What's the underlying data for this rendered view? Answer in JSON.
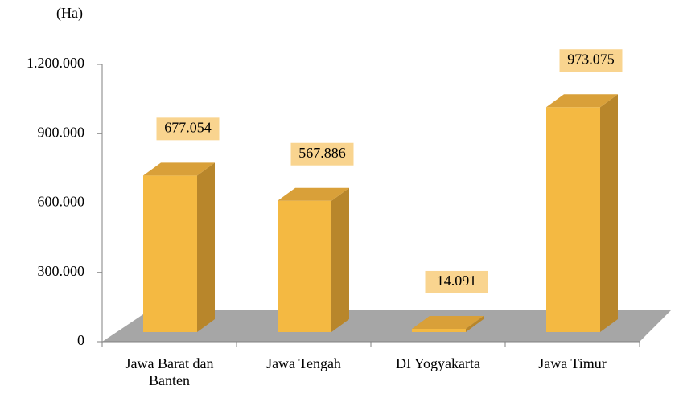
{
  "chart_data": {
    "type": "bar3d",
    "y_axis_label": "(Ha)",
    "categories": [
      "Jawa Barat dan Banten",
      "Jawa Tengah",
      "DI Yogyakarta",
      "Jawa Timur"
    ],
    "values": [
      677054,
      567886,
      14091,
      973075
    ],
    "value_labels": [
      "677.054",
      "567.886",
      "14.091",
      "973.075"
    ],
    "color": "#f4b942",
    "ylim": [
      0,
      1200000
    ],
    "yticks": [
      0,
      {
        "value": 300000,
        "label": "300.000"
      },
      {
        "value": 600000,
        "label": "600.000"
      },
      {
        "value": 900000,
        "label": "900.000"
      },
      {
        "value": 1200000,
        "label": "1.200.000"
      }
    ]
  }
}
